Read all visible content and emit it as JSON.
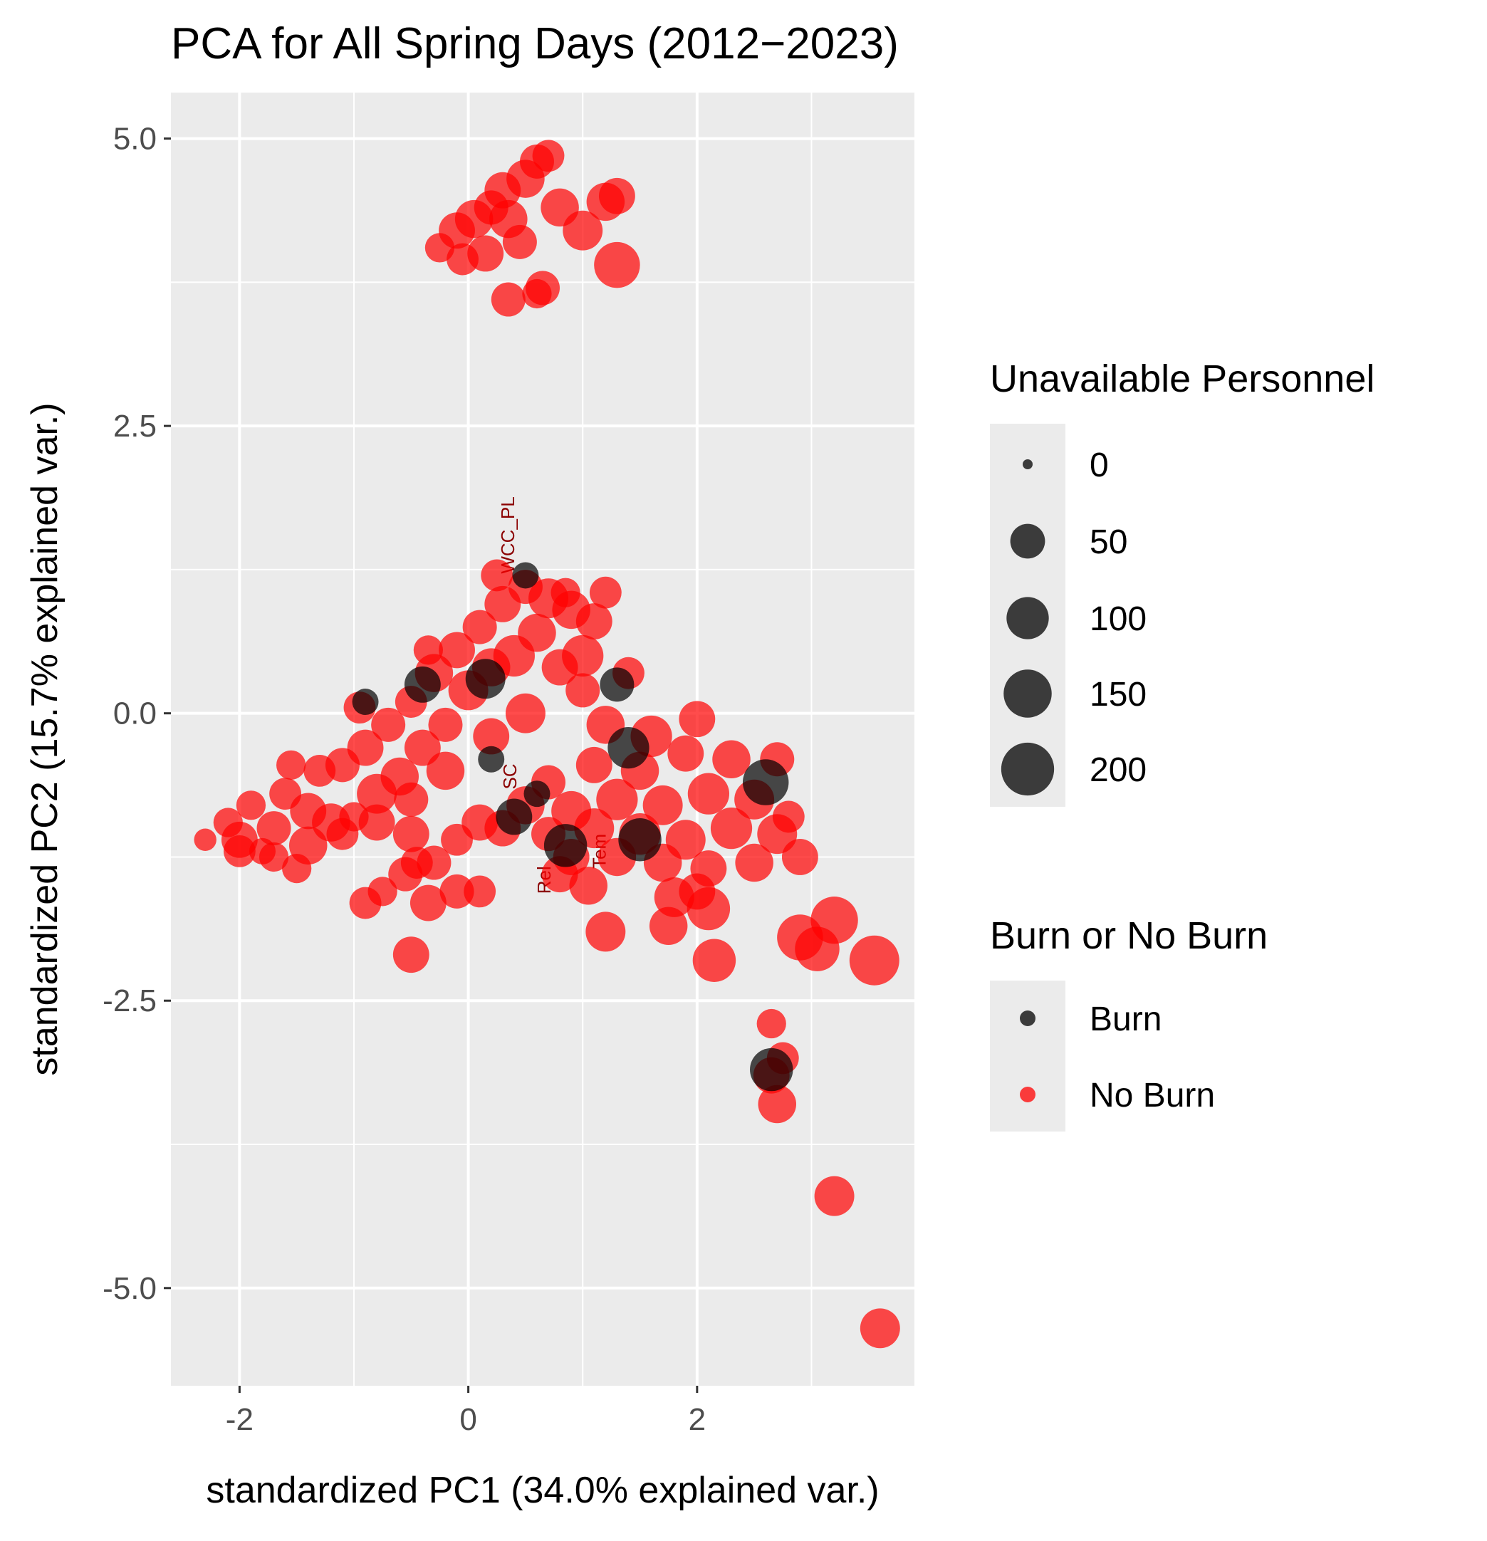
{
  "chart_data": {
    "type": "scatter",
    "title": "PCA for All Spring Days (2012−2023)",
    "xlabel": "standardized PC1 (34.0% explained var.)",
    "ylabel": "standardized PC2 (15.7% explained var.)",
    "xlim": [
      -2.6,
      3.9
    ],
    "ylim": [
      -5.85,
      5.4
    ],
    "x_ticks": [
      -2,
      0,
      2
    ],
    "x_tick_labels": [
      "-2",
      "0",
      "2"
    ],
    "y_ticks": [
      5.0,
      2.5,
      0.0,
      -2.5,
      -5.0
    ],
    "y_tick_labels": [
      "5.0",
      "2.5",
      "0.0",
      "-2.5",
      "-5.0"
    ],
    "grid": true,
    "background": "#ebebeb",
    "colors": {
      "Burn": "#000000",
      "No Burn": "#ff0000"
    },
    "point_alpha": 0.7,
    "legend_placement": "right",
    "legends": {
      "size": {
        "title": "Unavailable Personnel",
        "values": [
          0,
          50,
          100,
          150,
          200
        ],
        "labels": [
          "0",
          "50",
          "100",
          "150",
          "200"
        ]
      },
      "color": {
        "title": "Burn or No Burn",
        "labels": [
          "Burn",
          "No Burn"
        ]
      }
    },
    "loading_labels": [
      {
        "text": "WCC_PL",
        "x": 0.4,
        "y": 1.55,
        "angle": -90
      },
      {
        "text": "SC",
        "x": 0.42,
        "y": -0.55,
        "angle": -90
      },
      {
        "text": "Rel",
        "x": 0.72,
        "y": -1.45,
        "angle": -90
      },
      {
        "text": "Tem",
        "x": 1.2,
        "y": -1.2,
        "angle": -90
      }
    ],
    "series": [
      {
        "name": "No Burn",
        "points": [
          [
            -0.25,
            4.05,
            30
          ],
          [
            -0.1,
            4.2,
            60
          ],
          [
            0.05,
            4.3,
            70
          ],
          [
            0.2,
            4.4,
            50
          ],
          [
            0.3,
            4.55,
            60
          ],
          [
            0.5,
            4.65,
            70
          ],
          [
            0.6,
            4.8,
            50
          ],
          [
            0.7,
            4.85,
            40
          ],
          [
            0.45,
            4.1,
            50
          ],
          [
            0.15,
            4.0,
            60
          ],
          [
            -0.05,
            3.95,
            40
          ],
          [
            0.8,
            4.4,
            70
          ],
          [
            1.0,
            4.2,
            80
          ],
          [
            1.2,
            4.45,
            70
          ],
          [
            1.3,
            4.5,
            60
          ],
          [
            1.3,
            3.9,
            120
          ],
          [
            0.35,
            3.6,
            50
          ],
          [
            0.65,
            3.7,
            50
          ],
          [
            0.6,
            3.65,
            30
          ],
          [
            0.35,
            4.3,
            70
          ],
          [
            -2.3,
            -1.1,
            10
          ],
          [
            -2.1,
            -0.95,
            30
          ],
          [
            -2.0,
            -1.1,
            60
          ],
          [
            -1.9,
            -0.8,
            30
          ],
          [
            -1.8,
            -1.2,
            20
          ],
          [
            -1.7,
            -1.0,
            50
          ],
          [
            -1.6,
            -0.7,
            40
          ],
          [
            -1.5,
            -1.35,
            30
          ],
          [
            -1.4,
            -0.85,
            60
          ],
          [
            -1.3,
            -0.5,
            40
          ],
          [
            -1.2,
            -0.95,
            70
          ],
          [
            -1.1,
            -0.45,
            50
          ],
          [
            -1.0,
            -0.9,
            30
          ],
          [
            -0.9,
            -0.3,
            60
          ],
          [
            -0.8,
            -0.7,
            80
          ],
          [
            -0.7,
            -0.1,
            50
          ],
          [
            -0.6,
            -0.55,
            70
          ],
          [
            -0.5,
            0.1,
            40
          ],
          [
            -0.4,
            -0.3,
            60
          ],
          [
            -0.3,
            0.35,
            70
          ],
          [
            -0.2,
            -0.1,
            50
          ],
          [
            -0.1,
            0.55,
            60
          ],
          [
            0.0,
            0.2,
            80
          ],
          [
            0.1,
            0.75,
            50
          ],
          [
            0.2,
            0.4,
            70
          ],
          [
            0.3,
            0.95,
            60
          ],
          [
            0.4,
            0.5,
            90
          ],
          [
            0.5,
            1.1,
            50
          ],
          [
            0.6,
            0.7,
            70
          ],
          [
            0.7,
            1.0,
            80
          ],
          [
            0.8,
            0.4,
            60
          ],
          [
            0.9,
            0.9,
            70
          ],
          [
            1.0,
            0.2,
            50
          ],
          [
            1.1,
            0.8,
            60
          ],
          [
            1.2,
            1.05,
            40
          ],
          [
            1.0,
            0.5,
            90
          ],
          [
            0.5,
            0.0,
            80
          ],
          [
            0.2,
            -0.2,
            60
          ],
          [
            -0.2,
            -0.5,
            70
          ],
          [
            -0.5,
            -0.75,
            50
          ],
          [
            -0.8,
            -0.95,
            60
          ],
          [
            -1.1,
            -1.05,
            40
          ],
          [
            -1.4,
            -1.15,
            70
          ],
          [
            -1.7,
            -1.25,
            30
          ],
          [
            -2.0,
            -1.2,
            40
          ],
          [
            -1.55,
            -0.45,
            30
          ],
          [
            -0.95,
            0.05,
            40
          ],
          [
            -0.35,
            0.55,
            30
          ],
          [
            0.25,
            1.2,
            40
          ],
          [
            0.85,
            1.05,
            30
          ],
          [
            -0.5,
            -1.05,
            60
          ],
          [
            -0.3,
            -1.3,
            50
          ],
          [
            -0.1,
            -1.1,
            40
          ],
          [
            0.1,
            -0.95,
            60
          ],
          [
            -0.9,
            -1.65,
            40
          ],
          [
            -0.75,
            -1.55,
            30
          ],
          [
            -0.55,
            -1.4,
            50
          ],
          [
            -0.45,
            -1.3,
            40
          ],
          [
            -0.35,
            -1.65,
            60
          ],
          [
            -0.1,
            -1.55,
            50
          ],
          [
            0.1,
            -1.55,
            40
          ],
          [
            -0.5,
            -2.1,
            60
          ],
          [
            0.3,
            -1.0,
            60
          ],
          [
            0.5,
            -0.8,
            70
          ],
          [
            0.7,
            -0.6,
            50
          ],
          [
            0.9,
            -0.85,
            80
          ],
          [
            1.1,
            -0.45,
            60
          ],
          [
            1.3,
            -0.75,
            90
          ],
          [
            1.5,
            -0.5,
            70
          ],
          [
            1.7,
            -0.8,
            80
          ],
          [
            1.9,
            -0.35,
            60
          ],
          [
            2.1,
            -0.7,
            90
          ],
          [
            2.3,
            -0.4,
            70
          ],
          [
            2.5,
            -0.75,
            80
          ],
          [
            2.7,
            -0.4,
            50
          ],
          [
            0.7,
            -1.05,
            50
          ],
          [
            0.9,
            -1.25,
            60
          ],
          [
            1.1,
            -1.0,
            80
          ],
          [
            1.3,
            -1.25,
            70
          ],
          [
            1.5,
            -1.05,
            90
          ],
          [
            1.7,
            -1.3,
            70
          ],
          [
            1.9,
            -1.1,
            80
          ],
          [
            2.1,
            -1.35,
            60
          ],
          [
            2.3,
            -1.0,
            90
          ],
          [
            2.5,
            -1.3,
            70
          ],
          [
            2.7,
            -1.05,
            80
          ],
          [
            2.9,
            -1.25,
            60
          ],
          [
            2.8,
            -0.9,
            40
          ],
          [
            1.4,
            0.35,
            40
          ],
          [
            1.2,
            -0.1,
            70
          ],
          [
            1.8,
            -1.6,
            80
          ],
          [
            2.0,
            -1.55,
            60
          ],
          [
            2.1,
            -1.7,
            100
          ],
          [
            1.2,
            -1.9,
            80
          ],
          [
            2.15,
            -2.15,
            100
          ],
          [
            2.9,
            -1.95,
            120
          ],
          [
            3.05,
            -2.05,
            110
          ],
          [
            3.2,
            -1.8,
            130
          ],
          [
            3.55,
            -2.15,
            150
          ],
          [
            2.65,
            -2.7,
            30
          ],
          [
            2.75,
            -3.0,
            40
          ],
          [
            2.65,
            -3.15,
            60
          ],
          [
            2.7,
            -3.4,
            70
          ],
          [
            3.2,
            -4.2,
            80
          ],
          [
            3.6,
            -5.35,
            80
          ],
          [
            1.6,
            -0.2,
            90
          ],
          [
            2.0,
            -0.05,
            60
          ],
          [
            1.75,
            -1.85,
            70
          ],
          [
            1.05,
            -1.5,
            70
          ],
          [
            0.8,
            -1.4,
            60
          ]
        ]
      },
      {
        "name": "Burn",
        "points": [
          [
            -0.4,
            0.25,
            60
          ],
          [
            0.15,
            0.3,
            80
          ],
          [
            -0.9,
            0.1,
            20
          ],
          [
            0.4,
            -0.9,
            60
          ],
          [
            0.6,
            -0.7,
            20
          ],
          [
            0.85,
            -1.15,
            100
          ],
          [
            1.4,
            -0.3,
            90
          ],
          [
            1.5,
            -1.1,
            100
          ],
          [
            1.3,
            0.25,
            50
          ],
          [
            2.6,
            -0.6,
            120
          ],
          [
            2.65,
            -3.1,
            100
          ],
          [
            0.5,
            1.2,
            20
          ],
          [
            0.2,
            -0.4,
            20
          ]
        ]
      }
    ]
  }
}
